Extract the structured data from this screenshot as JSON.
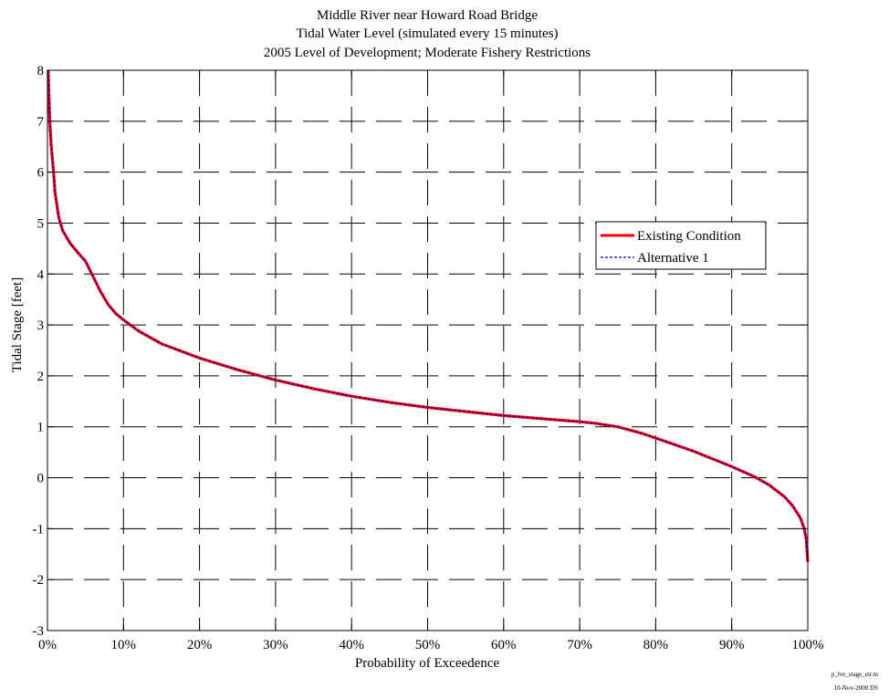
{
  "chart_data": {
    "type": "line",
    "title": [
      "Middle River near Howard Road Bridge",
      "Tidal Water Level (simulated every 15 minutes)",
      "2005 Level of Development; Moderate Fishery Restrictions"
    ],
    "xlabel": "Probability of Exceedence",
    "ylabel": "Tidal Stage [feet]",
    "xlim": [
      0,
      100
    ],
    "ylim": [
      -3,
      8
    ],
    "x_ticks": [
      0,
      10,
      20,
      30,
      40,
      50,
      60,
      70,
      80,
      90,
      100
    ],
    "x_tick_labels": [
      "0%",
      "10%",
      "20%",
      "30%",
      "40%",
      "50%",
      "60%",
      "70%",
      "80%",
      "90%",
      "100%"
    ],
    "y_ticks": [
      -3,
      -2,
      -1,
      0,
      1,
      2,
      3,
      4,
      5,
      6,
      7,
      8
    ],
    "y_tick_labels": [
      "-3",
      "-2",
      "-1",
      "0",
      "1",
      "2",
      "3",
      "4",
      "5",
      "6",
      "7",
      "8"
    ],
    "grid": true,
    "legend_position": "right",
    "series": [
      {
        "name": "Existing Condition",
        "color": "#ff0000",
        "style": "solid",
        "x": [
          0.1,
          0.3,
          0.5,
          0.8,
          1,
          1.5,
          2,
          3,
          4,
          5,
          6,
          7,
          8,
          9,
          10,
          12,
          15,
          20,
          25,
          30,
          35,
          40,
          45,
          50,
          55,
          60,
          65,
          70,
          72,
          75,
          78,
          80,
          85,
          90,
          93,
          95,
          97,
          98,
          99,
          99.5,
          99.8,
          100
        ],
        "y": [
          8.0,
          7.0,
          6.5,
          6.0,
          5.6,
          5.1,
          4.85,
          4.6,
          4.42,
          4.25,
          3.95,
          3.65,
          3.4,
          3.22,
          3.1,
          2.88,
          2.63,
          2.35,
          2.12,
          1.92,
          1.75,
          1.6,
          1.48,
          1.38,
          1.3,
          1.22,
          1.16,
          1.1,
          1.07,
          1.0,
          0.88,
          0.78,
          0.52,
          0.22,
          0.02,
          -0.15,
          -0.38,
          -0.55,
          -0.78,
          -0.98,
          -1.2,
          -1.65
        ]
      },
      {
        "name": "Alternative 1",
        "color": "#0000cc",
        "style": "dashed",
        "x": [
          0.1,
          0.3,
          0.5,
          0.8,
          1,
          1.5,
          2,
          3,
          4,
          5,
          6,
          7,
          8,
          9,
          10,
          12,
          15,
          20,
          25,
          30,
          35,
          40,
          45,
          50,
          55,
          60,
          65,
          70,
          72,
          75,
          78,
          80,
          85,
          90,
          93,
          95,
          97,
          98,
          99,
          99.5,
          99.8,
          100
        ],
        "y": [
          8.0,
          7.0,
          6.5,
          6.0,
          5.6,
          5.1,
          4.85,
          4.6,
          4.42,
          4.25,
          3.95,
          3.65,
          3.4,
          3.22,
          3.1,
          2.88,
          2.63,
          2.35,
          2.12,
          1.92,
          1.75,
          1.6,
          1.48,
          1.38,
          1.3,
          1.22,
          1.16,
          1.1,
          1.07,
          1.0,
          0.88,
          0.78,
          0.52,
          0.22,
          0.02,
          -0.15,
          -0.38,
          -0.55,
          -0.78,
          -0.98,
          -1.2,
          -1.65
        ]
      }
    ]
  },
  "footer": {
    "script_name": "p_lve_stage_eir.m",
    "date_stamp": "10-Nov-2008 DS"
  }
}
